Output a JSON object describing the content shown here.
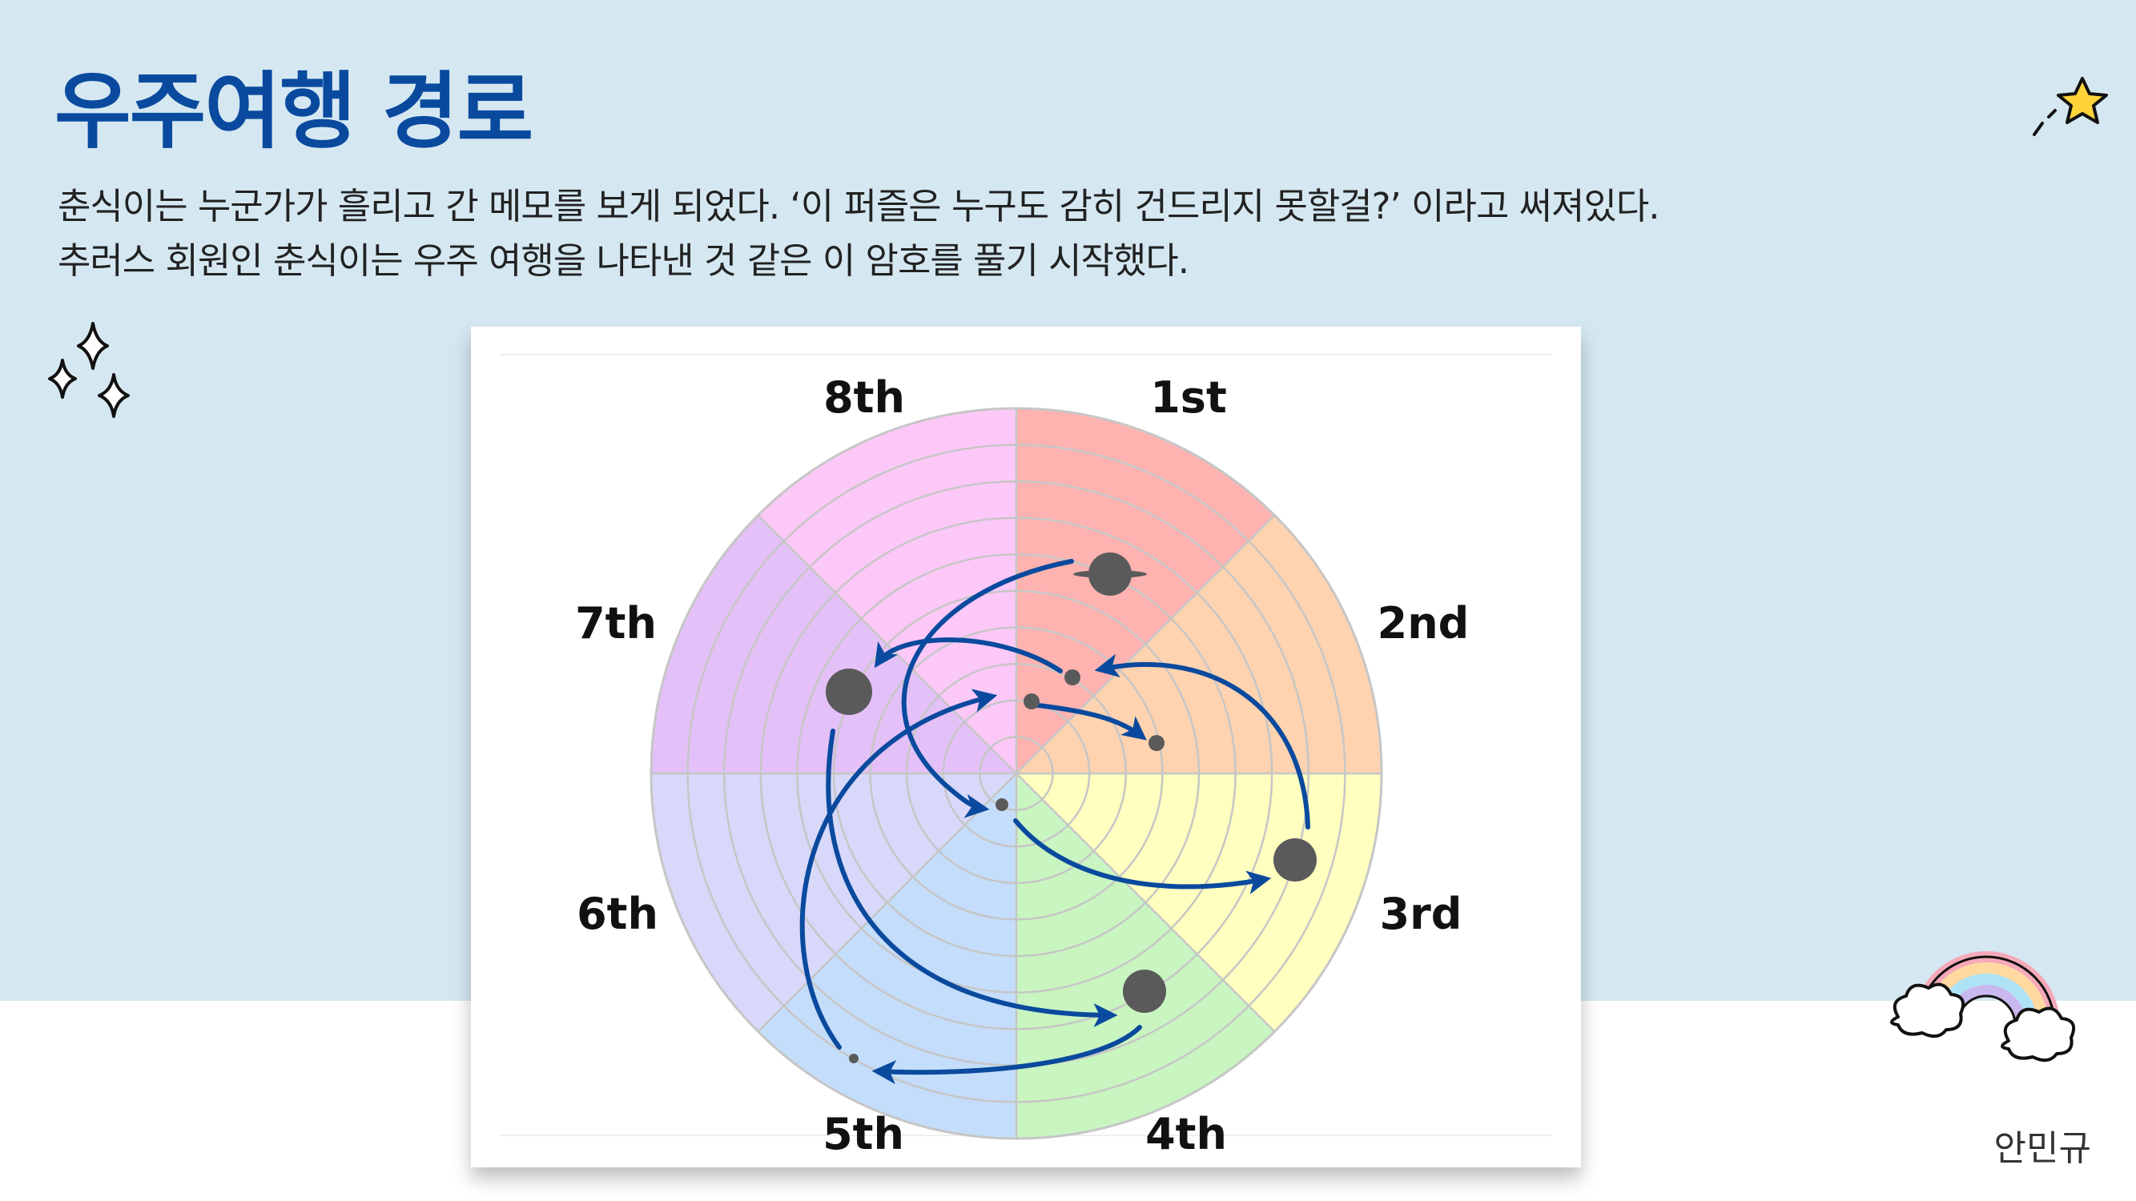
{
  "title": "우주여행 경로",
  "description": [
    "춘식이는 누군가가 흘리고 간 메모를 보게 되었다. ‘이 퍼즐은 누구도 감히 건드리지 못할걸?’ 이라고 써져있다.",
    "추러스 회원인 춘식이는 우주 여행을 나타낸 것 같은 이 암호를 풀기 시작했다."
  ],
  "diagram": {
    "sectors": [
      {
        "label": "1st",
        "color": "#ffb3b0"
      },
      {
        "label": "2nd",
        "color": "#ffd3b0"
      },
      {
        "label": "3rd",
        "color": "#ffffc0"
      },
      {
        "label": "4th",
        "color": "#c8f5c0"
      },
      {
        "label": "5th",
        "color": "#c4ddfa"
      },
      {
        "label": "6th",
        "color": "#d8d8fa"
      },
      {
        "label": "7th",
        "color": "#e3c0f7"
      },
      {
        "label": "8th",
        "color": "#fcc8f8"
      }
    ],
    "ring_count": 10,
    "planet_color": "#5a5a5a",
    "arrow_color": "#0a4a9e"
  },
  "author": "안민규"
}
